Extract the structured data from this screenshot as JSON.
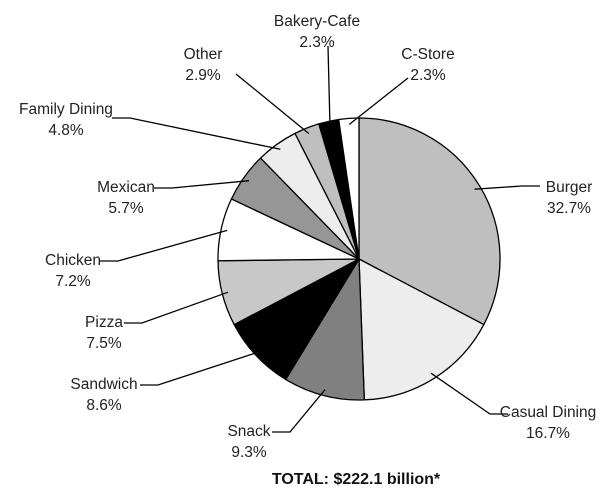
{
  "chart_data": {
    "type": "pie",
    "title": "",
    "start": "12 o'clock, clockwise",
    "slices": [
      {
        "name": "Burger",
        "value": 32.7,
        "label_pct": "32.7%",
        "color": "#bfbfbf"
      },
      {
        "name": "Casual Dining",
        "value": 16.7,
        "label_pct": "16.7%",
        "color": "#ededed"
      },
      {
        "name": "Snack",
        "value": 9.3,
        "label_pct": "9.3%",
        "color": "#808080"
      },
      {
        "name": "Sandwich",
        "value": 8.6,
        "label_pct": "8.6%",
        "color": "#000000"
      },
      {
        "name": "Pizza",
        "value": 7.5,
        "label_pct": "7.5%",
        "color": "#c8c8c8"
      },
      {
        "name": "Chicken",
        "value": 7.2,
        "label_pct": "7.2%",
        "color": "#ffffff"
      },
      {
        "name": "Mexican",
        "value": 5.7,
        "label_pct": "5.7%",
        "color": "#969696"
      },
      {
        "name": "Family Dining",
        "value": 4.8,
        "label_pct": "4.8%",
        "color": "#ededed"
      },
      {
        "name": "Other",
        "value": 2.9,
        "label_pct": "2.9%",
        "color": "#bfbfbf"
      },
      {
        "name": "Bakery-Cafe",
        "value": 2.3,
        "label_pct": "2.3%",
        "color": "#000000"
      },
      {
        "name": "C-Store",
        "value": 2.3,
        "label_pct": "2.3%",
        "color": "#ffffff"
      }
    ],
    "total_label": "TOTAL: $222.1 billion*"
  }
}
